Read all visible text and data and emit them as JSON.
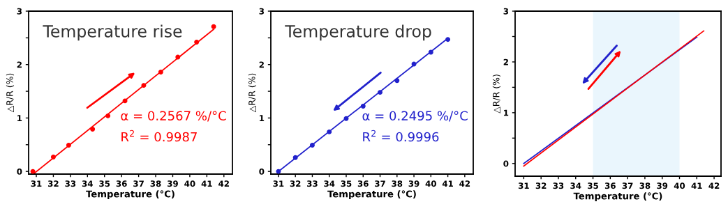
{
  "chart_data": [
    {
      "type": "scatter",
      "xlabel": "Temperature (°C)",
      "ylabel": "△R/R (%)",
      "xlim": [
        30.55,
        42.5
      ],
      "ylim": [
        -0.05,
        3
      ],
      "xticks": [
        31,
        32,
        33,
        34,
        35,
        36,
        37,
        38,
        39,
        40,
        41,
        42
      ],
      "yticks": [
        0,
        {
          "value": 0.5,
          "label": null
        },
        1,
        {
          "value": 1.5,
          "label": null
        },
        2,
        {
          "value": 2.5,
          "label": null
        },
        3
      ],
      "grid": false,
      "legend": false,
      "marker": "circle",
      "annotations": [
        "Temperature rise",
        "α = 0.2567 %/°C",
        "R$^{2}$ = 0.9987"
      ],
      "series": [
        {
          "type": "scatter",
          "color": "#ff0000",
          "x": [
            30.8,
            32,
            32.9,
            34.3,
            35.2,
            36.2,
            37.3,
            38.3,
            39.3,
            40.4,
            41.4
          ],
          "values": [
            0.0,
            0.27,
            0.49,
            0.79,
            1.04,
            1.32,
            1.61,
            1.86,
            2.14,
            2.42,
            2.71
          ]
        },
        {
          "type": "line",
          "color": "#ff0000",
          "marker": "none",
          "x": [
            30.9,
            41.4
          ],
          "values": [
            -0.03,
            2.66
          ]
        }
      ]
    },
    {
      "type": "scatter",
      "xlabel": "Temperature (°C)",
      "ylabel": "△R/R (%)",
      "xlim": [
        30.55,
        42.5
      ],
      "ylim": [
        -0.05,
        3
      ],
      "xticks": [
        31,
        32,
        33,
        34,
        35,
        36,
        37,
        38,
        39,
        40,
        41,
        42
      ],
      "yticks": [
        0,
        {
          "value": 0.5,
          "label": null
        },
        1,
        {
          "value": 1.5,
          "label": null
        },
        2,
        {
          "value": 2.5,
          "label": null
        },
        3
      ],
      "grid": false,
      "legend": false,
      "marker": "circle",
      "annotations": [
        "Temperature drop",
        "α = 0.2495 %/°C",
        "R$^{2}$ = 0.9996"
      ],
      "series": [
        {
          "type": "scatter",
          "color": "#2222cc",
          "x": [
            31,
            32,
            33,
            34,
            35,
            36,
            37,
            38,
            39,
            40,
            41
          ],
          "values": [
            0.0,
            0.26,
            0.49,
            0.74,
            0.99,
            1.22,
            1.48,
            1.7,
            2.01,
            2.23,
            2.47
          ]
        },
        {
          "type": "line",
          "color": "#2222cc",
          "marker": "none",
          "x": [
            31,
            41
          ],
          "values": [
            0.0,
            2.49
          ]
        }
      ]
    },
    {
      "type": "line",
      "xlabel": "Temperature (°C)",
      "ylabel": "△R/R (%)",
      "xlim": [
        30.5,
        42.4
      ],
      "ylim": [
        -0.25,
        3
      ],
      "xticks": [
        31,
        32,
        33,
        34,
        35,
        36,
        37,
        38,
        39,
        40,
        41,
        42
      ],
      "yticks": [
        0,
        {
          "value": 0.5,
          "label": null
        },
        1,
        {
          "value": 1.5,
          "label": null
        },
        2,
        {
          "value": 2.5,
          "label": null
        },
        3
      ],
      "grid": false,
      "legend": false,
      "marker": "none",
      "bands": [
        {
          "axis": "x",
          "from": 35,
          "to": 40,
          "color": "#eaf6fd"
        }
      ],
      "series": [
        {
          "color": "#2222cc",
          "x": [
            31,
            41
          ],
          "values": [
            0.0,
            2.49
          ]
        },
        {
          "color": "#ff0000",
          "x": [
            31,
            41.4
          ],
          "values": [
            -0.05,
            2.61
          ]
        }
      ]
    }
  ]
}
